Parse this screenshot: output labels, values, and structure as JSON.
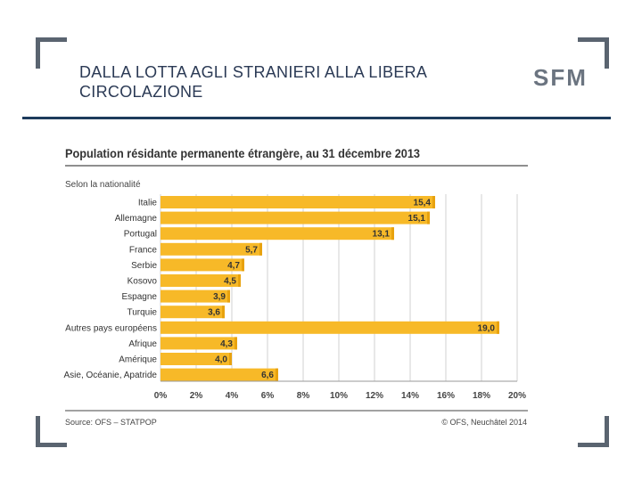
{
  "slide": {
    "title": "DALLA LOTTA AGLI STRANIERI ALLA LIBERA CIRCOLAZIONE",
    "logo": "SFM"
  },
  "colors": {
    "bar": "#f7b928",
    "bar_edge": "#e8a20e",
    "frame": "#5a6470",
    "rule": "#1d3b5c"
  },
  "chart_data": {
    "type": "bar",
    "orientation": "horizontal",
    "title": "Population résidante permanente étrangère, au 31 décembre 2013",
    "subtitle": "Selon la nationalité",
    "categories": [
      "Italie",
      "Allemagne",
      "Portugal",
      "France",
      "Serbie",
      "Kosovo",
      "Espagne",
      "Turquie",
      "Autres pays européens",
      "Afrique",
      "Amérique",
      "Asie, Océanie, Apatride"
    ],
    "values": [
      15.4,
      15.1,
      13.1,
      5.7,
      4.7,
      4.5,
      3.9,
      3.6,
      19.0,
      4.3,
      4.0,
      6.6
    ],
    "value_labels": [
      "15,4",
      "15,1",
      "13,1",
      "5,7",
      "4,7",
      "4,5",
      "3,9",
      "3,6",
      "19,0",
      "4,3",
      "4,0",
      "6,6"
    ],
    "xlim": [
      0,
      20
    ],
    "xticks": [
      "0%",
      "2%",
      "4%",
      "6%",
      "8%",
      "10%",
      "12%",
      "14%",
      "16%",
      "18%",
      "20%"
    ],
    "grid": true,
    "source": "Source: OFS – STATPOP",
    "copyright": "© OFS, Neuchâtel 2014"
  }
}
